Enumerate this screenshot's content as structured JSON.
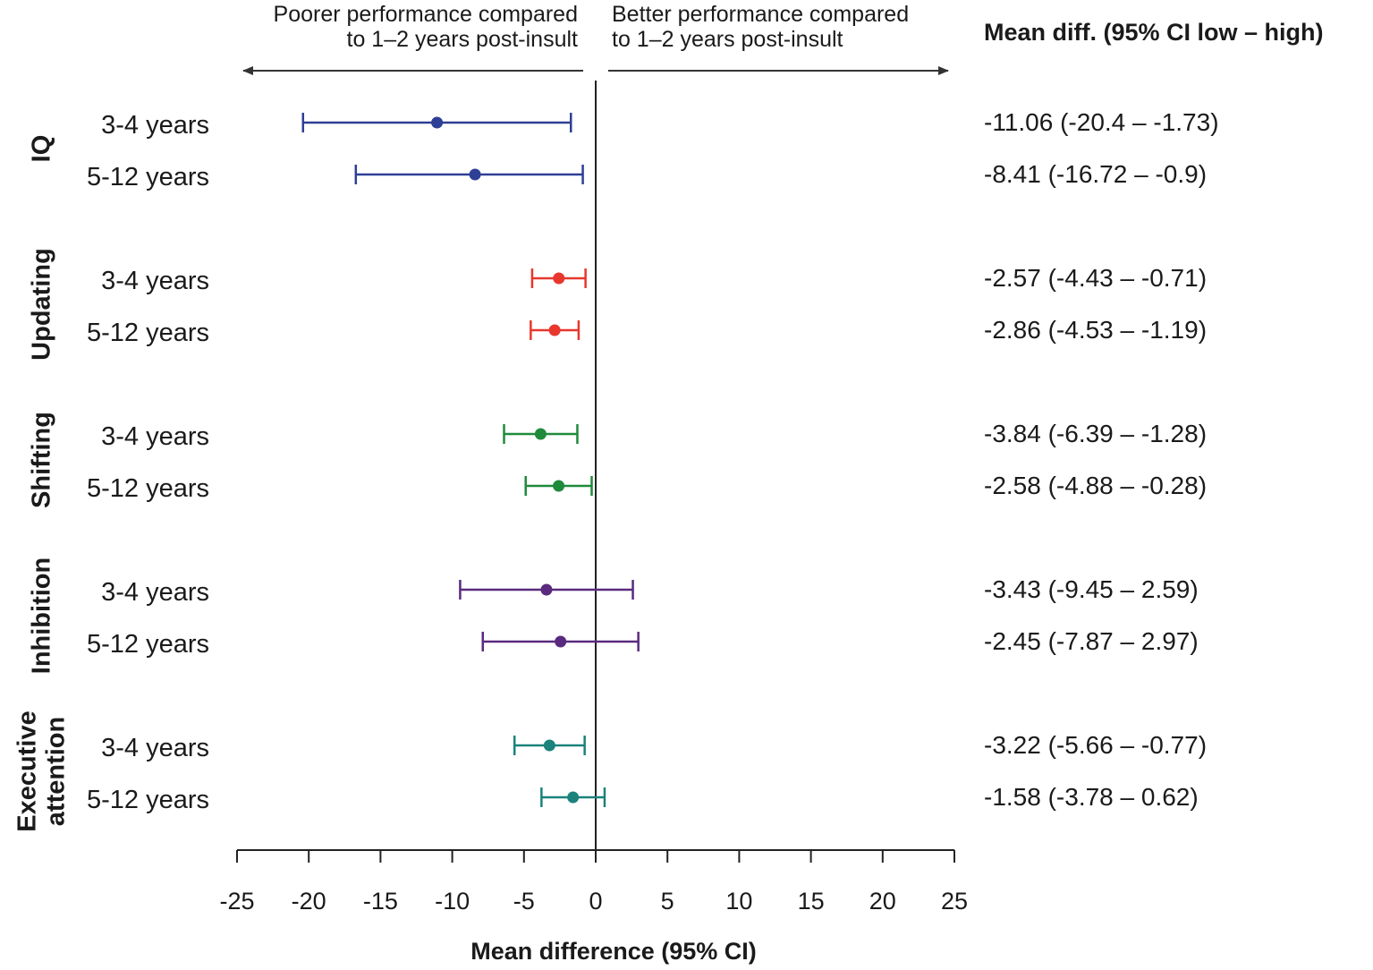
{
  "chart_data": {
    "type": "forest",
    "title": "",
    "xlabel": "Mean difference (95% CI)",
    "xlim": [
      -25,
      25
    ],
    "xticks": [
      -25,
      -20,
      -15,
      -10,
      -5,
      0,
      5,
      10,
      15,
      20,
      25
    ],
    "annotations": {
      "left": [
        "Poorer performance compared",
        "to 1–2 years post-insult"
      ],
      "right": [
        "Better performance compared",
        "to 1–2 years post-insult"
      ]
    },
    "ci_header": "Mean diff. (95% CI low – high)",
    "groups": [
      {
        "name": [
          "IQ"
        ],
        "color": "#2e3f96",
        "rows": [
          {
            "label": "3-4 years",
            "mean": -11.06,
            "low": -20.4,
            "high": -1.73,
            "text": "-11.06 (-20.4 – -1.73)"
          },
          {
            "label": "5-12 years",
            "mean": -8.41,
            "low": -16.72,
            "high": -0.9,
            "text": "-8.41 (-16.72 – -0.9)"
          }
        ]
      },
      {
        "name": [
          "Updating"
        ],
        "color": "#e8372d",
        "rows": [
          {
            "label": "3-4 years",
            "mean": -2.57,
            "low": -4.43,
            "high": -0.71,
            "text": "-2.57 (-4.43 – -0.71)"
          },
          {
            "label": "5-12 years",
            "mean": -2.86,
            "low": -4.53,
            "high": -1.19,
            "text": "-2.86 (-4.53 – -1.19)"
          }
        ]
      },
      {
        "name": [
          "Shifting"
        ],
        "color": "#1f8a3c",
        "rows": [
          {
            "label": "3-4 years",
            "mean": -3.84,
            "low": -6.39,
            "high": -1.28,
            "text": "-3.84 (-6.39 – -1.28)"
          },
          {
            "label": "5-12 years",
            "mean": -2.58,
            "low": -4.88,
            "high": -0.28,
            "text": "-2.58 (-4.88 – -0.28)"
          }
        ]
      },
      {
        "name": [
          "Inhibition"
        ],
        "color": "#5a2a7e",
        "rows": [
          {
            "label": "3-4 years",
            "mean": -3.43,
            "low": -9.45,
            "high": 2.59,
            "text": "-3.43 (-9.45 – 2.59)"
          },
          {
            "label": "5-12 years",
            "mean": -2.45,
            "low": -7.87,
            "high": 2.97,
            "text": "-2.45 (-7.87 – 2.97)"
          }
        ]
      },
      {
        "name": [
          "Executive",
          "attention"
        ],
        "color": "#1b827c",
        "rows": [
          {
            "label": "3-4 years",
            "mean": -3.22,
            "low": -5.66,
            "high": -0.77,
            "text": "-3.22 (-5.66 – -0.77)"
          },
          {
            "label": "5-12 years",
            "mean": -1.58,
            "low": -3.78,
            "high": 0.62,
            "text": "-1.58 (-3.78 – 0.62)"
          }
        ]
      }
    ]
  }
}
